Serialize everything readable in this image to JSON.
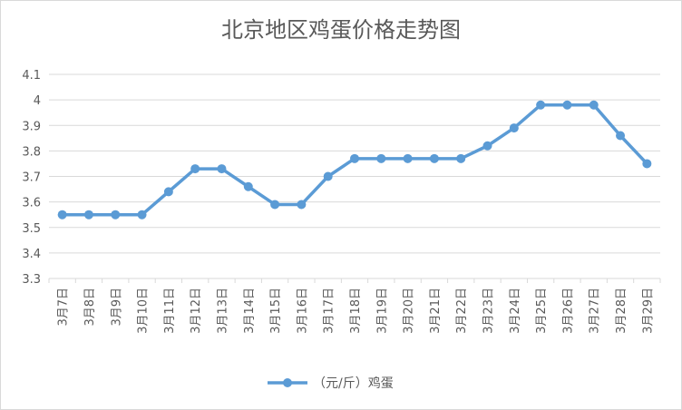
{
  "chart_data": {
    "type": "line",
    "title": "北京地区鸡蛋价格走势图",
    "categories": [
      "3月7日",
      "3月8日",
      "3月9日",
      "3月10日",
      "3月11日",
      "3月12日",
      "3月13日",
      "3月14日",
      "3月15日",
      "3月16日",
      "3月17日",
      "3月18日",
      "3月19日",
      "3月20日",
      "3月21日",
      "3月22日",
      "3月23日",
      "3月24日",
      "3月25日",
      "3月26日",
      "3月27日",
      "3月28日",
      "3月29日"
    ],
    "series": [
      {
        "name": "（元/斤）鸡蛋",
        "values": [
          3.55,
          3.55,
          3.55,
          3.55,
          3.64,
          3.73,
          3.73,
          3.66,
          3.59,
          3.59,
          3.7,
          3.77,
          3.77,
          3.77,
          3.77,
          3.77,
          3.82,
          3.89,
          3.98,
          3.98,
          3.98,
          3.86,
          3.75
        ],
        "color": "#5b9bd5"
      }
    ],
    "yticks": [
      "3.3",
      "3.4",
      "3.5",
      "3.6",
      "3.7",
      "3.8",
      "3.9",
      "4",
      "4.1"
    ],
    "ylim": [
      3.3,
      4.1
    ],
    "grid": true,
    "legend_position": "bottom"
  }
}
